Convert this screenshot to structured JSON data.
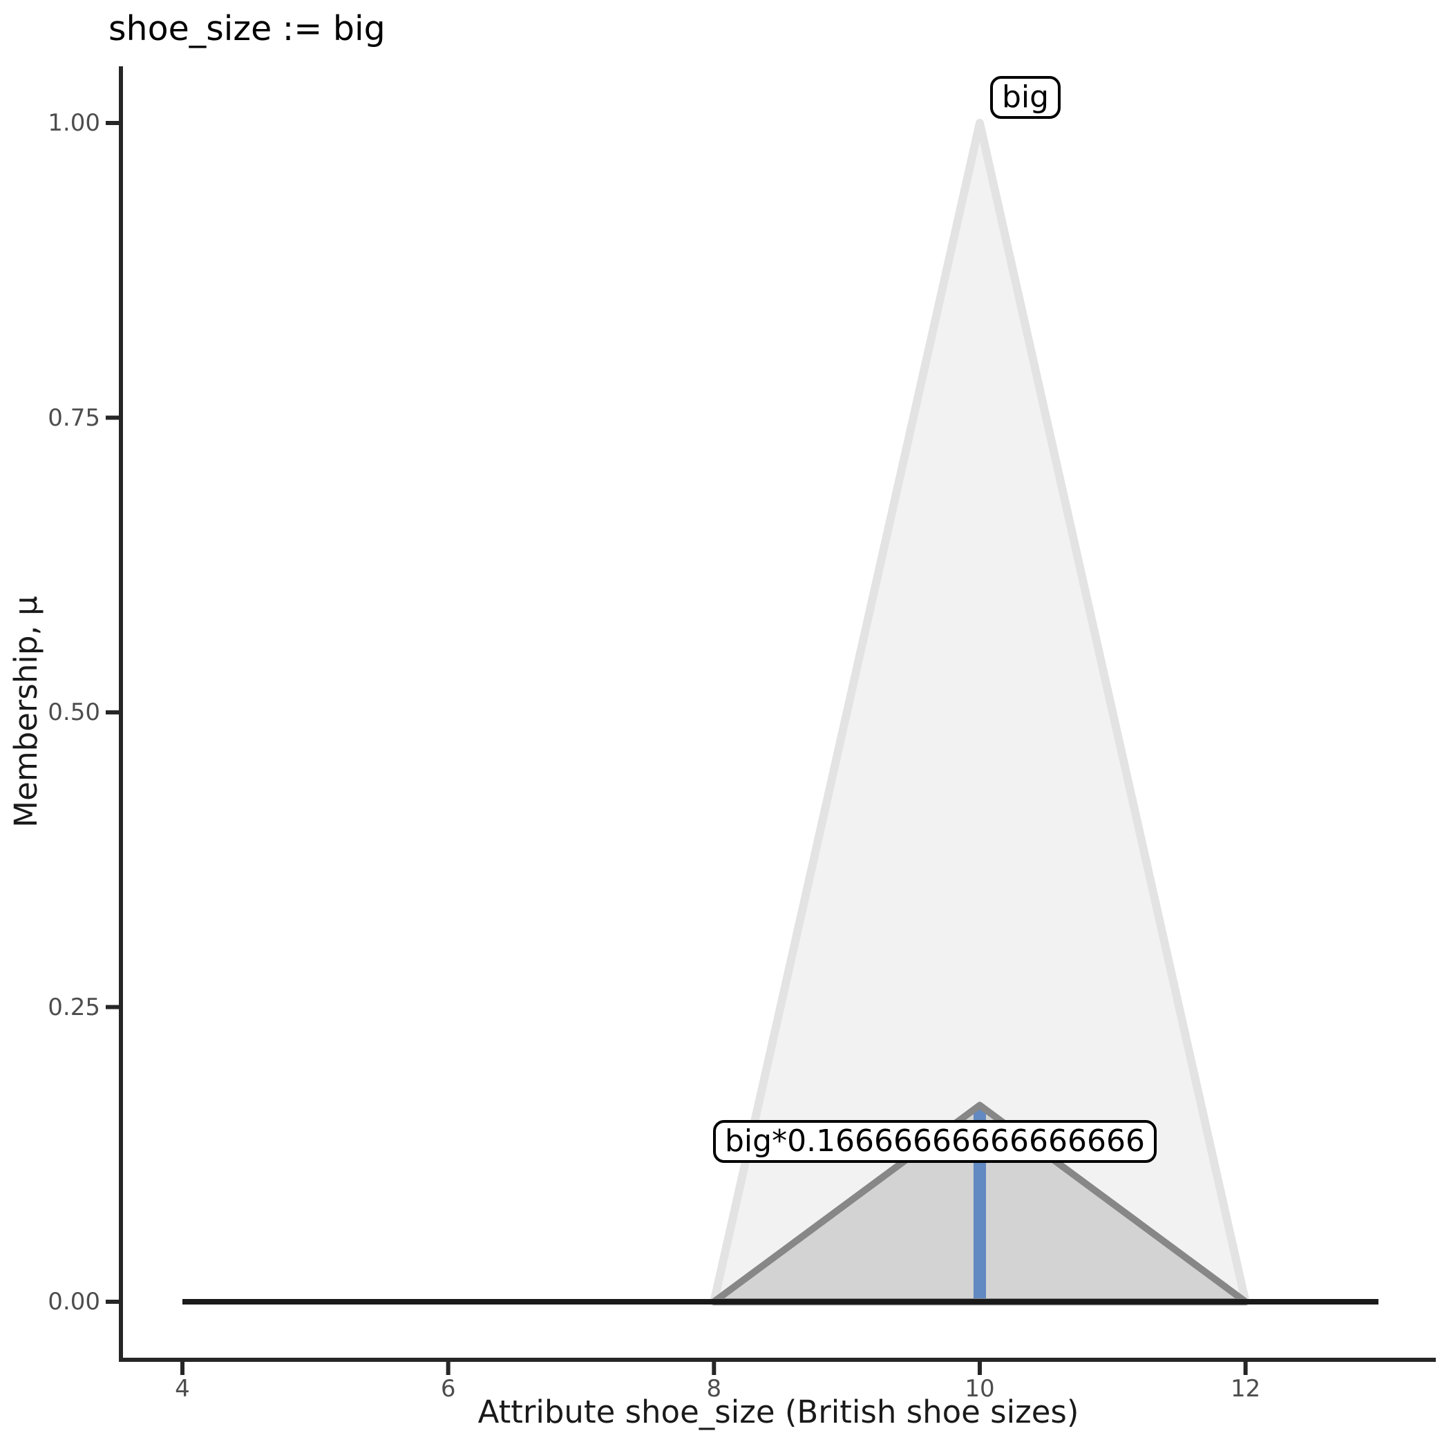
{
  "chart_data": {
    "type": "area",
    "title": "shoe_size := big",
    "xlabel": "Attribute shoe_size (British shoe sizes)",
    "ylabel": "Membership, μ",
    "x_ticks": [
      4,
      6,
      8,
      10,
      12
    ],
    "x_tick_labels": [
      "4",
      "6",
      "8",
      "10",
      "12"
    ],
    "y_ticks": [
      1.0,
      0.75,
      0.5,
      0.25,
      0.0
    ],
    "y_tick_labels": [
      "1.00",
      "0.75",
      "0.50",
      "0.25",
      "0.00"
    ],
    "xlim": [
      3.5,
      13.4
    ],
    "ylim": [
      -0.05,
      1.05
    ],
    "grid": false,
    "legend": false,
    "universe_baseline": {
      "x0": 4,
      "x1": 13,
      "y": 0,
      "color": "#1a1a1a"
    },
    "series": [
      {
        "name": "big",
        "label": "big",
        "points": [
          [
            8,
            0
          ],
          [
            10,
            1.0
          ],
          [
            12,
            0
          ]
        ],
        "fill_color": "#f2f2f2",
        "stroke_color": "#e3e3e3",
        "peak": {
          "x": 10,
          "mu": 1.0
        }
      },
      {
        "name": "big_scaled",
        "label": "big*0.16666666666666666",
        "points": [
          [
            8,
            0
          ],
          [
            10,
            0.16666666666666666
          ],
          [
            12,
            0
          ]
        ],
        "fill_color": "#d3d3d3",
        "stroke_color": "#878787",
        "peak": {
          "x": 10,
          "mu": 0.16666666666666666
        }
      }
    ],
    "marker_line": {
      "x": 10,
      "y0": 0,
      "y1": 0.16666666666666666,
      "color": "#6289c1"
    },
    "annotations": [
      {
        "text": "big",
        "x": 10,
        "y": 1.0
      },
      {
        "text": "big*0.16666666666666666",
        "x": 10,
        "y": 0.16666666666666666
      }
    ],
    "axis_color": "#262626",
    "tick_color": "#262626"
  }
}
